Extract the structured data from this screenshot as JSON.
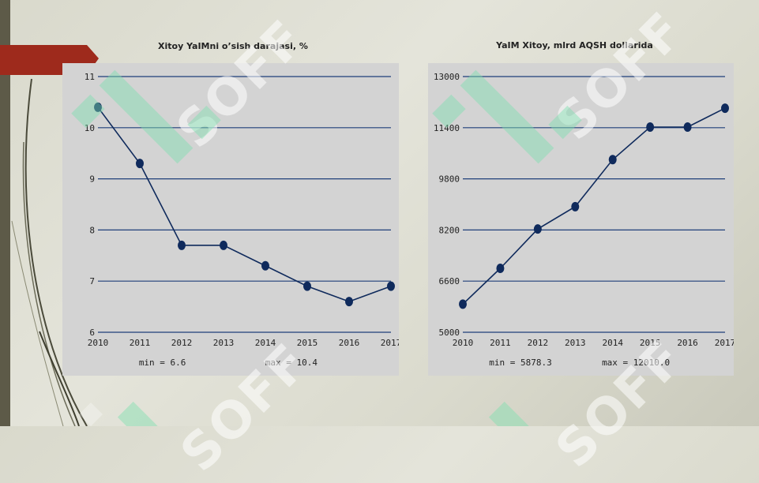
{
  "watermark_text": "SOFF",
  "colors": {
    "line": "#0f2a5c",
    "grid": "#1f3f7a",
    "panel": "#d3d3d3",
    "accent_red": "#9e2a1c",
    "watermark": "#7fe0b0"
  },
  "chart_data": [
    {
      "type": "line",
      "title": "Xitoy YaIMni o’sish darajasi, %",
      "x": [
        2010,
        2011,
        2012,
        2013,
        2014,
        2015,
        2016,
        2017
      ],
      "series": [
        {
          "values": [
            10.4,
            9.3,
            7.7,
            7.7,
            7.3,
            6.9,
            6.6,
            6.9
          ]
        }
      ],
      "xlabel": "",
      "ylabel": "",
      "ylim": [
        6,
        11
      ],
      "yticks": [
        6,
        7,
        8,
        9,
        10,
        11
      ],
      "ytick_labels": [
        "6",
        "7",
        "8",
        "9",
        "10",
        "11"
      ],
      "xtick_labels": [
        "2010",
        "2011",
        "2012",
        "2013",
        "2014",
        "2015",
        "2016",
        "2017"
      ],
      "grid": true,
      "min_label": "min = 6.6",
      "max_label": "max = 10.4"
    },
    {
      "type": "line",
      "title": "YaIM Xitoy, mlrd AQSH dollarida",
      "x": [
        2010,
        2011,
        2012,
        2013,
        2014,
        2015,
        2016,
        2017
      ],
      "series": [
        {
          "values": [
            5878.3,
            7000,
            8230,
            8930,
            10400,
            11420,
            11420,
            12010
          ]
        }
      ],
      "xlabel": "",
      "ylabel": "",
      "ylim": [
        5000,
        13000
      ],
      "yticks": [
        5000,
        6600,
        8200,
        9800,
        11400,
        13000
      ],
      "ytick_labels": [
        "5000",
        "6600",
        "8200",
        "9800",
        "11400",
        "13000"
      ],
      "xtick_labels": [
        "2010",
        "2011",
        "2012",
        "2013",
        "2014",
        "2015",
        "2016",
        "2017"
      ],
      "grid": true,
      "min_label": "min = 5878.3",
      "max_label": "max = 12010.0"
    }
  ]
}
